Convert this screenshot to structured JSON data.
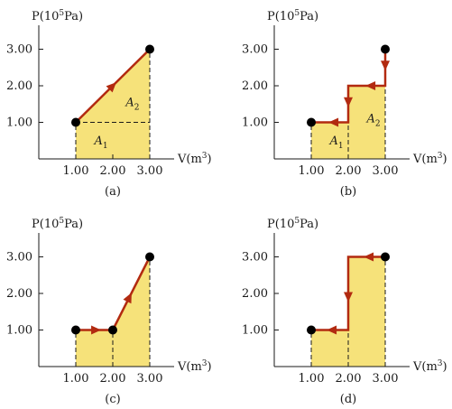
{
  "style": {
    "fill_color": "#f6e27a",
    "path_color": "#b22a10",
    "axis_color": "#1a1a1a",
    "point_color": "#000000"
  },
  "panels": [
    {
      "caption": "(a)",
      "y_axis_label": {
        "base": "P(10",
        "sup": "5",
        "unit": "Pa)"
      },
      "x_axis_label": {
        "base": "V(m",
        "sup": "3",
        "unit": ")"
      },
      "y_ticks": [
        "1.00",
        "2.00",
        "3.00"
      ],
      "x_ticks": [
        "1.00",
        "2.00",
        "3.00"
      ],
      "path": [
        [
          1,
          1
        ],
        [
          3,
          3
        ]
      ],
      "arrows": [
        {
          "at": [
            2,
            2
          ],
          "dir": "up-right"
        }
      ],
      "fill": [
        [
          1,
          0
        ],
        [
          1,
          1
        ],
        [
          3,
          3
        ],
        [
          3,
          0
        ]
      ],
      "dashed": [
        [
          [
            1,
            1
          ],
          [
            3,
            1
          ]
        ],
        [
          [
            1,
            0
          ],
          [
            1,
            1
          ]
        ],
        [
          [
            3,
            0
          ],
          [
            3,
            3
          ]
        ]
      ],
      "endpoints": [
        [
          1,
          1
        ],
        [
          3,
          3
        ]
      ],
      "area_labels": [
        {
          "main": "A",
          "sub": "2",
          "at": [
            2.35,
            1.45
          ]
        },
        {
          "main": "A",
          "sub": "1",
          "at": [
            1.5,
            0.4
          ]
        }
      ]
    },
    {
      "caption": "(b)",
      "y_axis_label": {
        "base": "P(10",
        "sup": "5",
        "unit": "Pa)"
      },
      "x_axis_label": {
        "base": "V(m",
        "sup": "3",
        "unit": ")"
      },
      "y_ticks": [
        "1.00",
        "2.00",
        "3.00"
      ],
      "x_ticks": [
        "1.00",
        "2.00",
        "3.00"
      ],
      "path": [
        [
          3,
          3
        ],
        [
          3,
          2
        ],
        [
          2,
          2
        ],
        [
          2,
          1
        ],
        [
          1,
          1
        ]
      ],
      "arrows": [
        {
          "at": [
            3,
            2.55
          ],
          "dir": "down"
        },
        {
          "at": [
            2.6,
            2
          ],
          "dir": "left"
        },
        {
          "at": [
            2,
            1.55
          ],
          "dir": "down"
        },
        {
          "at": [
            1.6,
            1
          ],
          "dir": "left"
        }
      ],
      "fill": [
        [
          1,
          0
        ],
        [
          1,
          1
        ],
        [
          2,
          1
        ],
        [
          2,
          2
        ],
        [
          3,
          2
        ],
        [
          3,
          0
        ]
      ],
      "dashed": [
        [
          [
            1,
            0
          ],
          [
            1,
            1
          ]
        ],
        [
          [
            2,
            0
          ],
          [
            2,
            1
          ]
        ],
        [
          [
            3,
            0
          ],
          [
            3,
            2
          ]
        ]
      ],
      "endpoints": [
        [
          1,
          1
        ],
        [
          3,
          3
        ]
      ],
      "area_labels": [
        {
          "main": "A",
          "sub": "2",
          "at": [
            2.5,
            1.0
          ]
        },
        {
          "main": "A",
          "sub": "1",
          "at": [
            1.5,
            0.4
          ]
        }
      ]
    },
    {
      "caption": "(c)",
      "y_axis_label": {
        "base": "P(10",
        "sup": "5",
        "unit": "Pa)"
      },
      "x_axis_label": {
        "base": "V(m",
        "sup": "3",
        "unit": ")"
      },
      "y_ticks": [
        "1.00",
        "2.00",
        "3.00"
      ],
      "x_ticks": [
        "1.00",
        "2.00",
        "3.00"
      ],
      "path": [
        [
          1,
          1
        ],
        [
          2,
          1
        ],
        [
          3,
          3
        ]
      ],
      "arrows": [
        {
          "at": [
            1.55,
            1
          ],
          "dir": "right"
        },
        {
          "at": [
            2.45,
            1.9
          ],
          "dir": "up-right-steep"
        }
      ],
      "fill": [
        [
          1,
          0
        ],
        [
          1,
          1
        ],
        [
          2,
          1
        ],
        [
          3,
          3
        ],
        [
          3,
          0
        ]
      ],
      "dashed": [
        [
          [
            1,
            0
          ],
          [
            1,
            1
          ]
        ],
        [
          [
            2,
            0
          ],
          [
            2,
            1
          ]
        ],
        [
          [
            3,
            0
          ],
          [
            3,
            3
          ]
        ]
      ],
      "endpoints": [
        [
          1,
          1
        ],
        [
          2,
          1
        ],
        [
          3,
          3
        ]
      ],
      "area_labels": []
    },
    {
      "caption": "(d)",
      "y_axis_label": {
        "base": "P(10",
        "sup": "5",
        "unit": "Pa)"
      },
      "x_axis_label": {
        "base": "V(m",
        "sup": "3",
        "unit": ")"
      },
      "y_ticks": [
        "1.00",
        "2.00",
        "3.00"
      ],
      "x_ticks": [
        "1.00",
        "2.00",
        "3.00"
      ],
      "path": [
        [
          3,
          3
        ],
        [
          2,
          3
        ],
        [
          2,
          1
        ],
        [
          1,
          1
        ]
      ],
      "arrows": [
        {
          "at": [
            2.55,
            3
          ],
          "dir": "left"
        },
        {
          "at": [
            2,
            1.9
          ],
          "dir": "down"
        },
        {
          "at": [
            1.55,
            1
          ],
          "dir": "left"
        }
      ],
      "fill": [
        [
          1,
          0
        ],
        [
          1,
          1
        ],
        [
          2,
          1
        ],
        [
          2,
          3
        ],
        [
          3,
          3
        ],
        [
          3,
          0
        ]
      ],
      "dashed": [
        [
          [
            1,
            0
          ],
          [
            1,
            1
          ]
        ],
        [
          [
            2,
            0
          ],
          [
            2,
            1
          ]
        ],
        [
          [
            3,
            0
          ],
          [
            3,
            3
          ]
        ]
      ],
      "endpoints": [
        [
          1,
          1
        ],
        [
          3,
          3
        ]
      ],
      "area_labels": []
    }
  ]
}
